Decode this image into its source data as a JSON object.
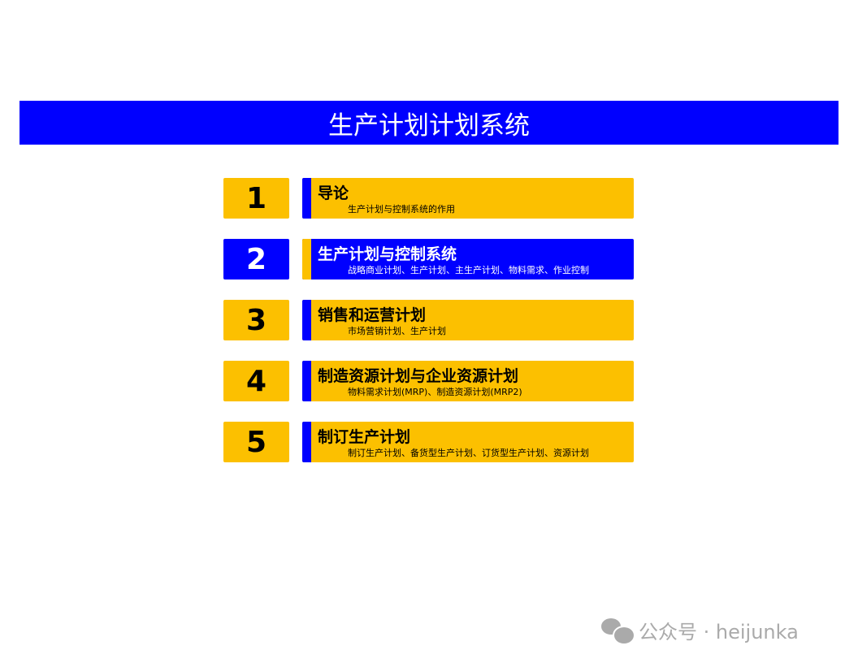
{
  "title": "生产计划计划系统",
  "colors": {
    "accent_blue": "#0000ff",
    "accent_yellow": "#fcc000"
  },
  "items": [
    {
      "number": "1",
      "title": "导论",
      "subtitle": "生产计划与控制系统的作用",
      "highlight": false
    },
    {
      "number": "2",
      "title": "生产计划与控制系统",
      "subtitle": "战略商业计划、生产计划、主生产计划、物料需求、作业控制",
      "highlight": true
    },
    {
      "number": "3",
      "title": "销售和运营计划",
      "subtitle": "市场营销计划、生产计划",
      "highlight": false
    },
    {
      "number": "4",
      "title": "制造资源计划与企业资源计划",
      "subtitle": "物料需求计划(MRP)、制造资源计划(MRP2)",
      "highlight": false
    },
    {
      "number": "5",
      "title": "制订生产计划",
      "subtitle": "制订生产计划、备货型生产计划、订货型生产计划、资源计划",
      "highlight": false
    }
  ],
  "watermark": {
    "icon": "wechat-icon",
    "text": "公众号 · heijunka"
  }
}
